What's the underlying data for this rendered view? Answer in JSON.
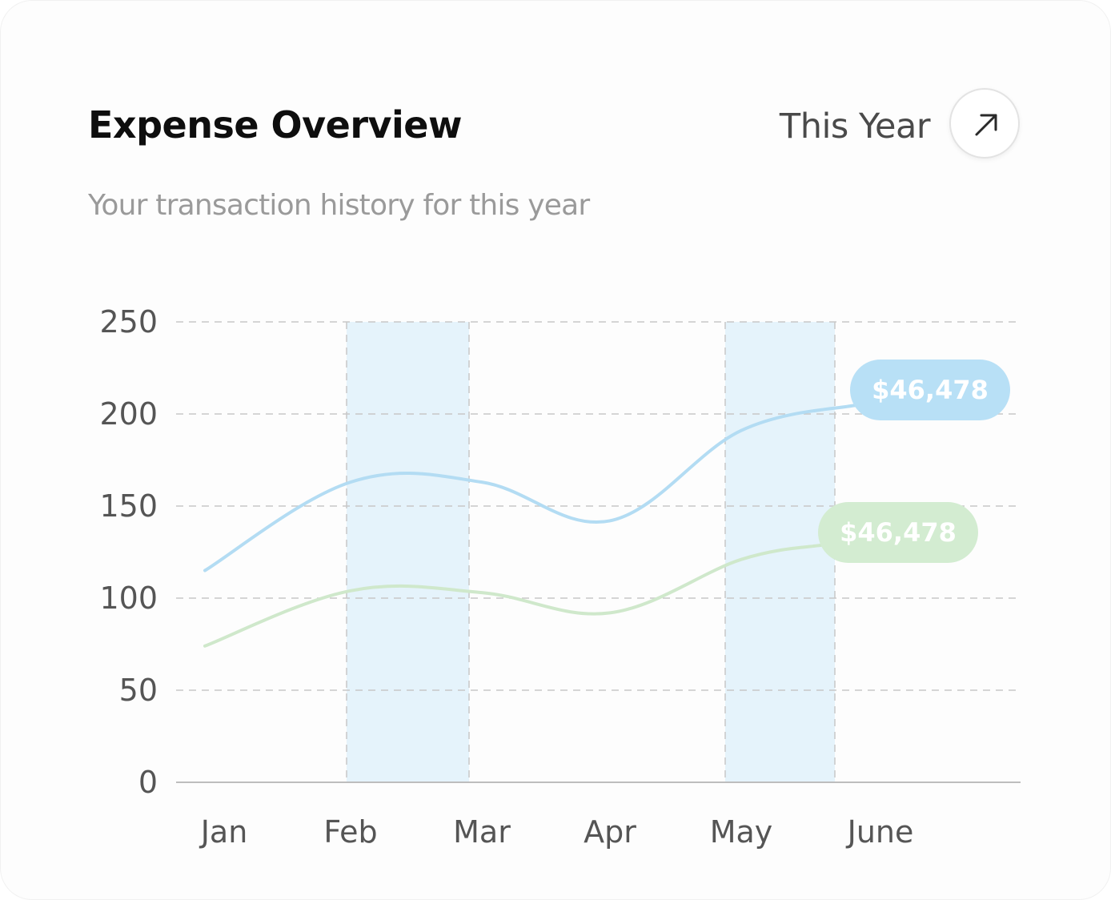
{
  "header": {
    "title": "Expense Overview",
    "subtitle": "Your transaction history for this year",
    "period_label": "This Year",
    "expand_icon": "arrow-up-right-icon"
  },
  "colors": {
    "series_blue": "#b3dcf3",
    "series_green": "#cfe8cb",
    "highlight_band": "#e5f3fb",
    "pill_blue": "#b8e0f6",
    "pill_green": "#d3ecd1",
    "grid": "#c8c8c8",
    "axis": "#bdbdbd"
  },
  "chart_data": {
    "type": "line",
    "x": [
      "Jan",
      "Feb",
      "Mar",
      "Apr",
      "May",
      "June"
    ],
    "ylim": [
      0,
      250
    ],
    "yticks": [
      "0",
      "50",
      "100",
      "150",
      "200",
      "250"
    ],
    "grid": true,
    "highlighted_ranges": [
      [
        "Feb",
        "Mar"
      ],
      [
        "May",
        "June"
      ]
    ],
    "series": [
      {
        "color": "#b3dcf3",
        "points": [
          {
            "x": "Jan",
            "y": 115
          },
          {
            "x": "Feb",
            "y": 163
          },
          {
            "x": "Mar",
            "y": 163
          },
          {
            "x": "Apr",
            "y": 142
          },
          {
            "x": "May",
            "y": 191
          },
          {
            "x": "June",
            "y": 205
          }
        ],
        "end_label": "$46,478"
      },
      {
        "color": "#cfe8cb",
        "points": [
          {
            "x": "Jan",
            "y": 74
          },
          {
            "x": "Feb",
            "y": 104
          },
          {
            "x": "Mar",
            "y": 103
          },
          {
            "x": "Apr",
            "y": 92
          },
          {
            "x": "May",
            "y": 121
          },
          {
            "x": "June",
            "y": 129
          }
        ],
        "end_label": "$46,478"
      }
    ]
  }
}
